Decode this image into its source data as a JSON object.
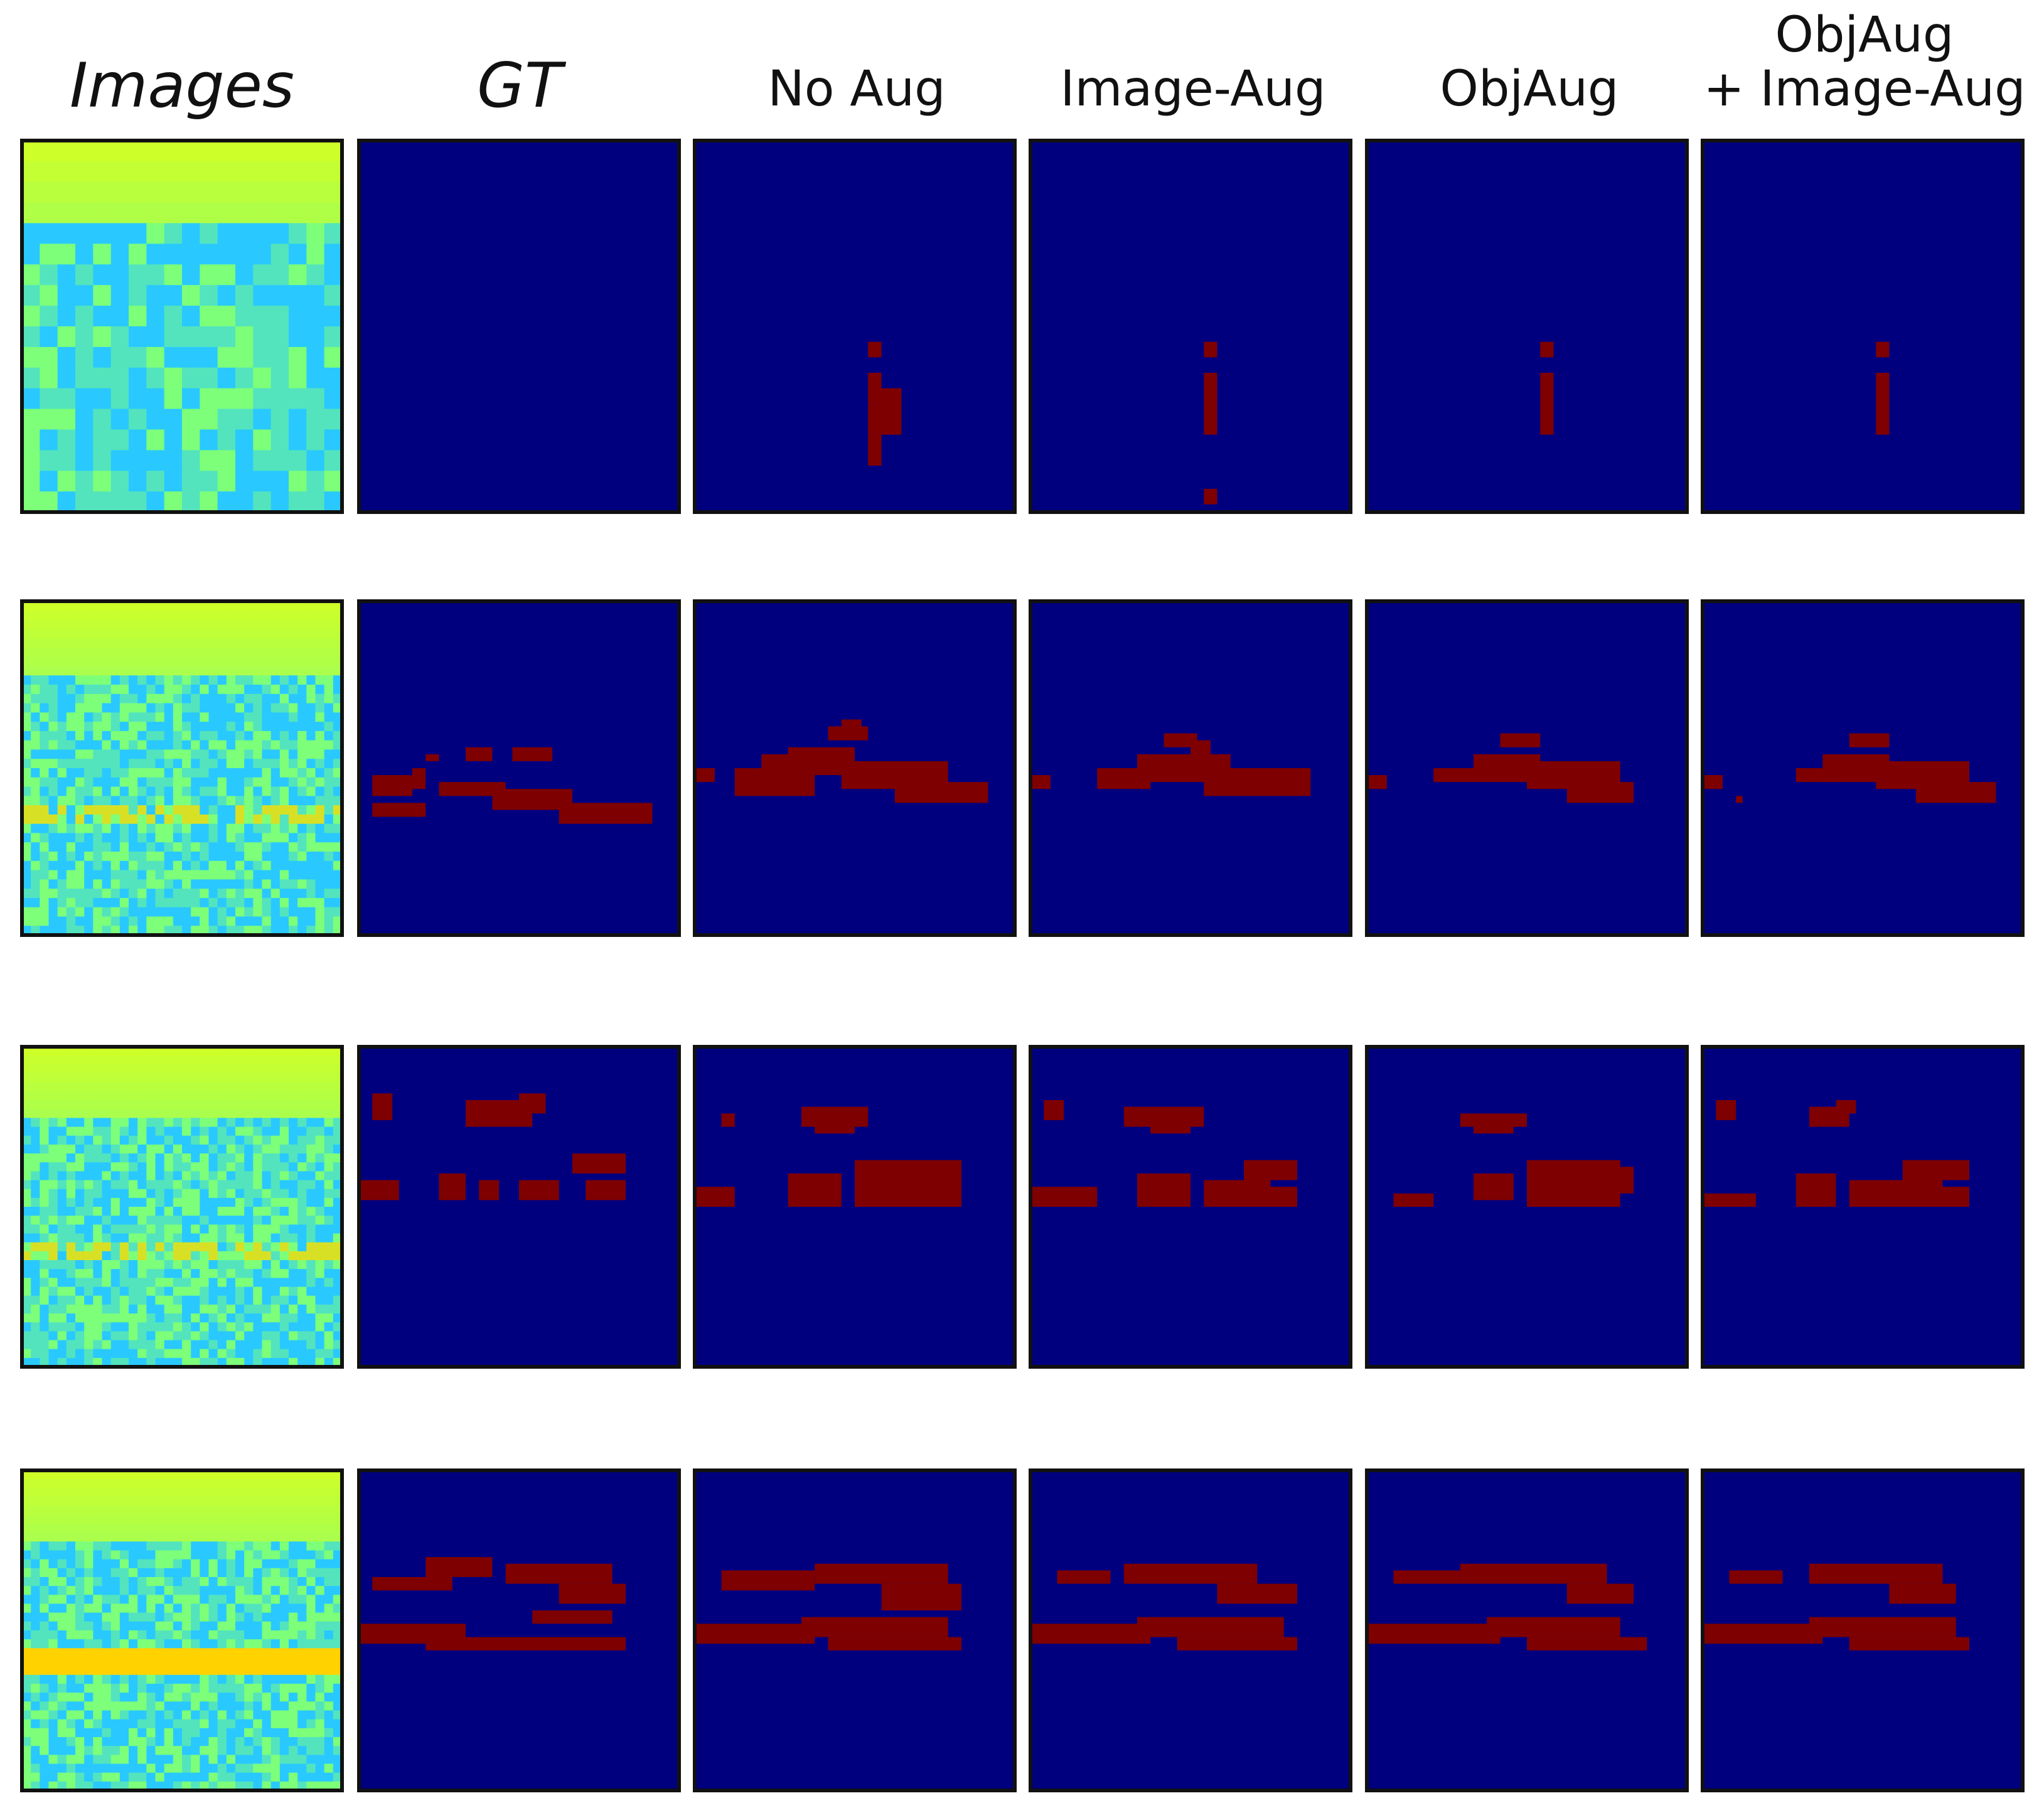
{
  "figure": {
    "headers": [
      "Images",
      "GT",
      "No Aug",
      "Image-Aug",
      "ObjAug",
      "ObjAug",
      "+ Image-Aug"
    ],
    "colors": {
      "background": "#00007f",
      "mask": "#7f0000",
      "frame": "#111111",
      "image_top": "#cdff29",
      "image_low": "#29c9ff",
      "image_mid": "#7dff7a",
      "image_hot": "#ffd200"
    },
    "rows": [
      {
        "image_style": "sparse",
        "masks": [
          [],
          [
            [
              26,
              26,
              2,
              2
            ],
            [
              26,
              30,
              2,
              4
            ],
            [
              28,
              32,
              3,
              6
            ],
            [
              26,
              34,
              4,
              4
            ],
            [
              26,
              38,
              2,
              4
            ]
          ],
          [
            [
              26,
              26,
              2,
              2
            ],
            [
              26,
              30,
              2,
              8
            ],
            [
              26,
              45,
              2,
              2
            ]
          ],
          [
            [
              26,
              26,
              2,
              2
            ],
            [
              26,
              30,
              2,
              8
            ]
          ],
          [
            [
              26,
              26,
              2,
              2
            ],
            [
              26,
              30,
              2,
              8
            ]
          ]
        ]
      },
      {
        "image_style": "band",
        "masks": [
          [
            [
              10,
              22,
              2,
              1
            ],
            [
              16,
              21,
              4,
              2
            ],
            [
              23,
              21,
              6,
              2
            ],
            [
              8,
              24,
              2,
              3
            ],
            [
              2,
              25,
              6,
              3
            ],
            [
              12,
              26,
              10,
              2
            ],
            [
              20,
              27,
              12,
              3
            ],
            [
              30,
              29,
              14,
              3
            ],
            [
              2,
              29,
              8,
              2
            ]
          ],
          [
            [
              20,
              18,
              6,
              2
            ],
            [
              22,
              17,
              3,
              1
            ],
            [
              10,
              22,
              14,
              3
            ],
            [
              14,
              21,
              10,
              2
            ],
            [
              6,
              24,
              12,
              4
            ],
            [
              22,
              23,
              16,
              4
            ],
            [
              30,
              26,
              14,
              3
            ],
            [
              0,
              24,
              3,
              2
            ]
          ],
          [
            [
              20,
              19,
              5,
              2
            ],
            [
              24,
              20,
              3,
              2
            ],
            [
              10,
              24,
              8,
              3
            ],
            [
              16,
              22,
              14,
              4
            ],
            [
              26,
              24,
              16,
              4
            ],
            [
              0,
              25,
              3,
              2
            ]
          ],
          [
            [
              20,
              19,
              6,
              2
            ],
            [
              10,
              24,
              6,
              2
            ],
            [
              16,
              22,
              10,
              4
            ],
            [
              24,
              23,
              14,
              4
            ],
            [
              30,
              26,
              10,
              3
            ],
            [
              0,
              25,
              3,
              2
            ]
          ],
          [
            [
              22,
              19,
              6,
              2
            ],
            [
              14,
              24,
              6,
              2
            ],
            [
              18,
              22,
              10,
              4
            ],
            [
              26,
              23,
              14,
              4
            ],
            [
              32,
              26,
              12,
              3
            ],
            [
              0,
              25,
              3,
              2
            ],
            [
              5,
              28,
              1,
              1
            ]
          ]
        ]
      },
      {
        "image_style": "band",
        "masks": [
          [
            [
              2,
              7,
              3,
              4
            ],
            [
              16,
              8,
              10,
              4
            ],
            [
              24,
              7,
              4,
              3
            ],
            [
              0,
              20,
              6,
              3
            ],
            [
              12,
              19,
              4,
              4
            ],
            [
              18,
              20,
              3,
              3
            ],
            [
              24,
              20,
              6,
              3
            ],
            [
              32,
              16,
              8,
              3
            ],
            [
              34,
              20,
              6,
              3
            ]
          ],
          [
            [
              4,
              10,
              2,
              2
            ],
            [
              16,
              9,
              10,
              3
            ],
            [
              18,
              11,
              6,
              2
            ],
            [
              0,
              21,
              6,
              3
            ],
            [
              14,
              19,
              8,
              5
            ],
            [
              24,
              17,
              16,
              7
            ]
          ],
          [
            [
              2,
              8,
              3,
              3
            ],
            [
              14,
              9,
              12,
              3
            ],
            [
              18,
              11,
              6,
              2
            ],
            [
              0,
              21,
              10,
              3
            ],
            [
              16,
              19,
              8,
              5
            ],
            [
              26,
              20,
              10,
              4
            ],
            [
              32,
              17,
              8,
              3
            ],
            [
              34,
              21,
              6,
              3
            ]
          ],
          [
            [
              14,
              10,
              10,
              2
            ],
            [
              16,
              11,
              6,
              2
            ],
            [
              4,
              22,
              6,
              2
            ],
            [
              16,
              19,
              6,
              4
            ],
            [
              24,
              17,
              14,
              7
            ],
            [
              34,
              18,
              6,
              4
            ]
          ],
          [
            [
              2,
              8,
              3,
              3
            ],
            [
              16,
              9,
              6,
              3
            ],
            [
              20,
              8,
              3,
              2
            ],
            [
              0,
              22,
              8,
              2
            ],
            [
              14,
              19,
              6,
              5
            ],
            [
              22,
              20,
              14,
              4
            ],
            [
              30,
              17,
              10,
              3
            ],
            [
              34,
              21,
              6,
              3
            ]
          ]
        ]
      },
      {
        "image_style": "stripe",
        "masks": [
          [
            [
              2,
              16,
              12,
              2
            ],
            [
              10,
              13,
              10,
              3
            ],
            [
              22,
              14,
              16,
              3
            ],
            [
              30,
              17,
              10,
              3
            ],
            [
              0,
              23,
              16,
              3
            ],
            [
              10,
              25,
              30,
              2
            ],
            [
              26,
              21,
              12,
              2
            ]
          ],
          [
            [
              4,
              15,
              14,
              3
            ],
            [
              18,
              14,
              20,
              3
            ],
            [
              28,
              17,
              12,
              4
            ],
            [
              0,
              23,
              18,
              3
            ],
            [
              16,
              22,
              22,
              3
            ],
            [
              20,
              25,
              20,
              2
            ]
          ],
          [
            [
              4,
              15,
              8,
              2
            ],
            [
              14,
              14,
              20,
              3
            ],
            [
              28,
              17,
              12,
              3
            ],
            [
              0,
              23,
              18,
              3
            ],
            [
              16,
              22,
              22,
              3
            ],
            [
              22,
              25,
              18,
              2
            ]
          ],
          [
            [
              4,
              15,
              10,
              2
            ],
            [
              14,
              14,
              22,
              3
            ],
            [
              30,
              17,
              10,
              3
            ],
            [
              0,
              23,
              20,
              3
            ],
            [
              18,
              22,
              20,
              3
            ],
            [
              24,
              25,
              18,
              2
            ]
          ],
          [
            [
              4,
              15,
              8,
              2
            ],
            [
              16,
              14,
              20,
              3
            ],
            [
              28,
              17,
              10,
              3
            ],
            [
              0,
              23,
              18,
              3
            ],
            [
              16,
              22,
              22,
              3
            ],
            [
              22,
              25,
              18,
              2
            ]
          ]
        ]
      }
    ]
  }
}
